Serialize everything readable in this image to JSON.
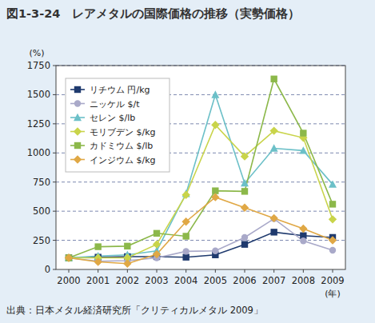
{
  "chart_data": {
    "type": "line",
    "title": "図1-3-24　レアメタルの国際価格の推移（実勢価格）",
    "y_label": "(%)",
    "x_label": "(年)",
    "source": "出典：日本メタル経済研究所「クリティカルメタル 2009」",
    "categories": [
      "2000",
      "2001",
      "2002",
      "2003",
      "2004",
      "2005",
      "2006",
      "2007",
      "2008",
      "2009"
    ],
    "series": [
      {
        "name": "リチウム 円/kg",
        "color": "#1f3a6e",
        "marker": "square",
        "values": [
          100,
          105,
          110,
          110,
          105,
          125,
          215,
          320,
          290,
          275
        ]
      },
      {
        "name": "ニッケル $/t",
        "color": "#a9a9c9",
        "marker": "circle",
        "values": [
          100,
          70,
          75,
          100,
          155,
          160,
          275,
          435,
          245,
          165
        ]
      },
      {
        "name": "セレン $/lb",
        "color": "#6cc0c8",
        "marker": "triangle",
        "values": [
          100,
          115,
          125,
          160,
          650,
          1500,
          740,
          1040,
          1020,
          730
        ]
      },
      {
        "name": "モリブデン $/kg",
        "color": "#c9d44a",
        "marker": "diamond",
        "values": [
          100,
          100,
          100,
          215,
          640,
          1240,
          970,
          1190,
          1130,
          430
        ]
      },
      {
        "name": "カドミウム $/lb",
        "color": "#8cb84a",
        "marker": "square",
        "values": [
          100,
          195,
          200,
          310,
          285,
          675,
          670,
          1635,
          1170,
          560
        ]
      },
      {
        "name": "インジウム $/kg",
        "color": "#e0a845",
        "marker": "diamond",
        "values": [
          100,
          65,
          50,
          130,
          410,
          620,
          530,
          440,
          350,
          250
        ]
      }
    ],
    "ylim": [
      0,
      1750
    ],
    "yticks": [
      0,
      250,
      500,
      750,
      1000,
      1250,
      1500,
      1750
    ],
    "grid": true,
    "legend": "top-left"
  }
}
